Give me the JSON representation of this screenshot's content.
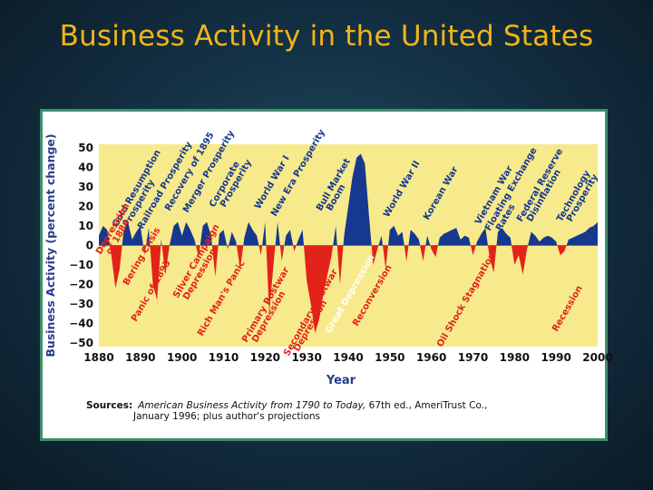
{
  "slide": {
    "title": "Business Activity in the United States"
  },
  "sources": {
    "label": "Sources:",
    "line1_italic": "American Business Activity from 1790 to Today,",
    "line1_rest": " 67th ed., AmeriTrust Co.,",
    "line2": "January 1996; plus author's projections"
  },
  "colors": {
    "positive": "#16388f",
    "negative": "#e2231a",
    "background": "#f7ea8c",
    "text_blue": "#2a3d8c"
  },
  "chart_data": {
    "type": "area",
    "title": "",
    "xlabel": "Year",
    "ylabel": "Business Activity (percent change)",
    "xlim": [
      1880,
      2000
    ],
    "ylim": [
      -50,
      50
    ],
    "xticks": [
      "1880",
      "1890",
      "1900",
      "1910",
      "1920",
      "1930",
      "1940",
      "1950",
      "1960",
      "1970",
      "1980",
      "1990",
      "2000"
    ],
    "yticks": [
      "50",
      "40",
      "30",
      "20",
      "10",
      "0",
      "−10",
      "−20",
      "−30",
      "−40",
      "−50"
    ],
    "grid": false,
    "series": [
      {
        "x": [
          1880,
          1881,
          1882,
          1883,
          1884,
          1885,
          1886,
          1887,
          1888,
          1889,
          1890,
          1891,
          1892,
          1893,
          1894,
          1895,
          1896,
          1897,
          1898,
          1899,
          1900,
          1901,
          1902,
          1903,
          1904,
          1905,
          1906,
          1907,
          1908,
          1909,
          1910,
          1911,
          1912,
          1913,
          1914,
          1915,
          1916,
          1917,
          1918,
          1919,
          1920,
          1921,
          1922,
          1923,
          1924,
          1925,
          1926,
          1927,
          1928,
          1929,
          1930,
          1931,
          1932,
          1933,
          1934,
          1935,
          1936,
          1937,
          1938,
          1939,
          1940,
          1941,
          1942,
          1943,
          1944,
          1945,
          1946,
          1947,
          1948,
          1949,
          1950,
          1951,
          1952,
          1953,
          1954,
          1955,
          1956,
          1957,
          1958,
          1959,
          1960,
          1961,
          1962,
          1963,
          1964,
          1965,
          1966,
          1967,
          1968,
          1969,
          1970,
          1971,
          1972,
          1973,
          1974,
          1975,
          1976,
          1977,
          1978,
          1979,
          1980,
          1981,
          1982,
          1983,
          1984,
          1985,
          1986,
          1987,
          1988,
          1989,
          1990,
          1991,
          1992,
          1993,
          1994,
          1995,
          1996,
          1997,
          1998,
          1999,
          2000
        ],
        "y": [
          5,
          10,
          8,
          -5,
          -22,
          -12,
          8,
          12,
          3,
          7,
          10,
          -5,
          9,
          -20,
          -28,
          3,
          -15,
          0,
          10,
          12,
          5,
          12,
          8,
          3,
          -6,
          10,
          12,
          5,
          -16,
          6,
          8,
          -2,
          7,
          2,
          -12,
          4,
          12,
          8,
          5,
          -5,
          12,
          -35,
          -10,
          12,
          -8,
          5,
          8,
          -3,
          3,
          8,
          -18,
          -30,
          -45,
          -38,
          -25,
          -15,
          -5,
          10,
          -20,
          5,
          20,
          35,
          45,
          47,
          42,
          15,
          -10,
          -2,
          5,
          -12,
          8,
          10,
          5,
          7,
          -8,
          8,
          6,
          3,
          -8,
          5,
          -2,
          -6,
          4,
          6,
          7,
          8,
          9,
          3,
          5,
          4,
          -5,
          2,
          6,
          9,
          -6,
          -14,
          7,
          9,
          6,
          4,
          -10,
          -5,
          -15,
          -2,
          7,
          5,
          2,
          4,
          5,
          4,
          2,
          -5,
          -3,
          3,
          4,
          5,
          6,
          7,
          9,
          10,
          12
        ]
      }
    ],
    "annotations": [
      {
        "text": "Gold Resumption",
        "color": "#16388f"
      },
      {
        "text": "Prosperity",
        "color": "#16388f"
      },
      {
        "text": "Railroad Prosperity",
        "color": "#16388f"
      },
      {
        "text": "Recovery of 1895",
        "color": "#16388f"
      },
      {
        "text": "Merger Prosperity",
        "color": "#16388f"
      },
      {
        "text": "Corporate",
        "color": "#16388f"
      },
      {
        "text": "Prosperity",
        "color": "#16388f"
      },
      {
        "text": "World War I",
        "color": "#16388f"
      },
      {
        "text": "New Era Prosperity",
        "color": "#16388f"
      },
      {
        "text": "Bull Market",
        "color": "#16388f"
      },
      {
        "text": "Boom",
        "color": "#16388f"
      },
      {
        "text": "World War II",
        "color": "#16388f"
      },
      {
        "text": "Korean War",
        "color": "#16388f"
      },
      {
        "text": "Vietnam War",
        "color": "#16388f"
      },
      {
        "text": "Floating Exchange",
        "color": "#16388f"
      },
      {
        "text": "Rates",
        "color": "#16388f"
      },
      {
        "text": "Federal Reserve",
        "color": "#16388f"
      },
      {
        "text": "Disinflation",
        "color": "#16388f"
      },
      {
        "text": "Technology",
        "color": "#16388f"
      },
      {
        "text": "Prosperity",
        "color": "#16388f"
      },
      {
        "text": "Depression",
        "color": "#e2231a"
      },
      {
        "text": "of 1884",
        "color": "#e2231a"
      },
      {
        "text": "Bering Crisis",
        "color": "#e2231a"
      },
      {
        "text": "Panic of 1893",
        "color": "#e2231a"
      },
      {
        "text": "Silver Campaign",
        "color": "#e2231a"
      },
      {
        "text": "Depression",
        "color": "#e2231a"
      },
      {
        "text": "Rich Man's Panic",
        "color": "#e2231a"
      },
      {
        "text": "Primary Postwar",
        "color": "#e2231a"
      },
      {
        "text": "Depression",
        "color": "#e2231a"
      },
      {
        "text": "Secondary Postwar",
        "color": "#e2231a"
      },
      {
        "text": "Depression",
        "color": "#e2231a"
      },
      {
        "text": "Great Depression",
        "color": "#ffffff"
      },
      {
        "text": "Reconversion",
        "color": "#e2231a"
      },
      {
        "text": "Oil Shock Stagnation",
        "color": "#e2231a"
      },
      {
        "text": "Recession",
        "color": "#e2231a"
      }
    ]
  }
}
